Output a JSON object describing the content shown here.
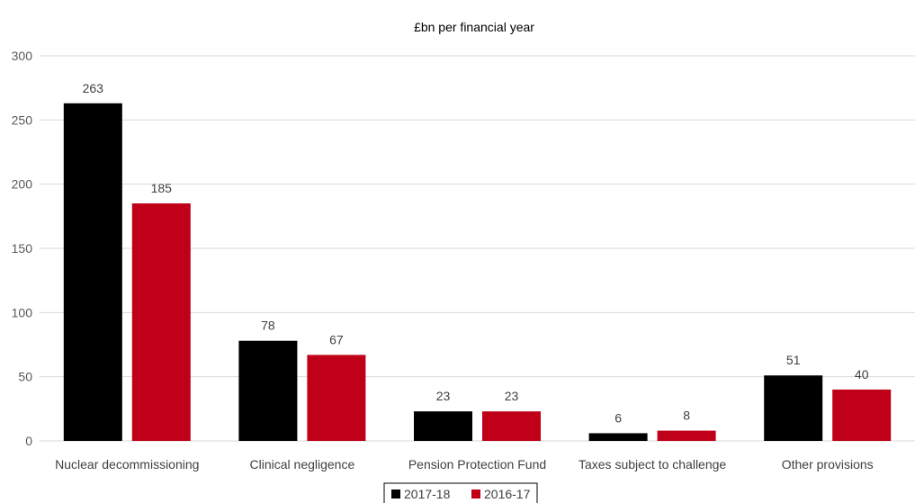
{
  "chart_data": {
    "type": "bar",
    "title": "£bn per financial year",
    "categories": [
      "Nuclear decommissioning",
      "Clinical negligence",
      "Pension Protection Fund",
      "Taxes subject to challenge",
      "Other provisions"
    ],
    "series": [
      {
        "name": "2017-18",
        "color": "#000000",
        "values": [
          263,
          78,
          23,
          6,
          51
        ]
      },
      {
        "name": "2016-17",
        "color": "#c00018",
        "values": [
          185,
          67,
          23,
          8,
          40
        ]
      }
    ],
    "ylim": [
      0,
      300
    ],
    "yticks": [
      0,
      50,
      100,
      150,
      200,
      250,
      300
    ],
    "grid": true,
    "legend_position": "bottom"
  }
}
